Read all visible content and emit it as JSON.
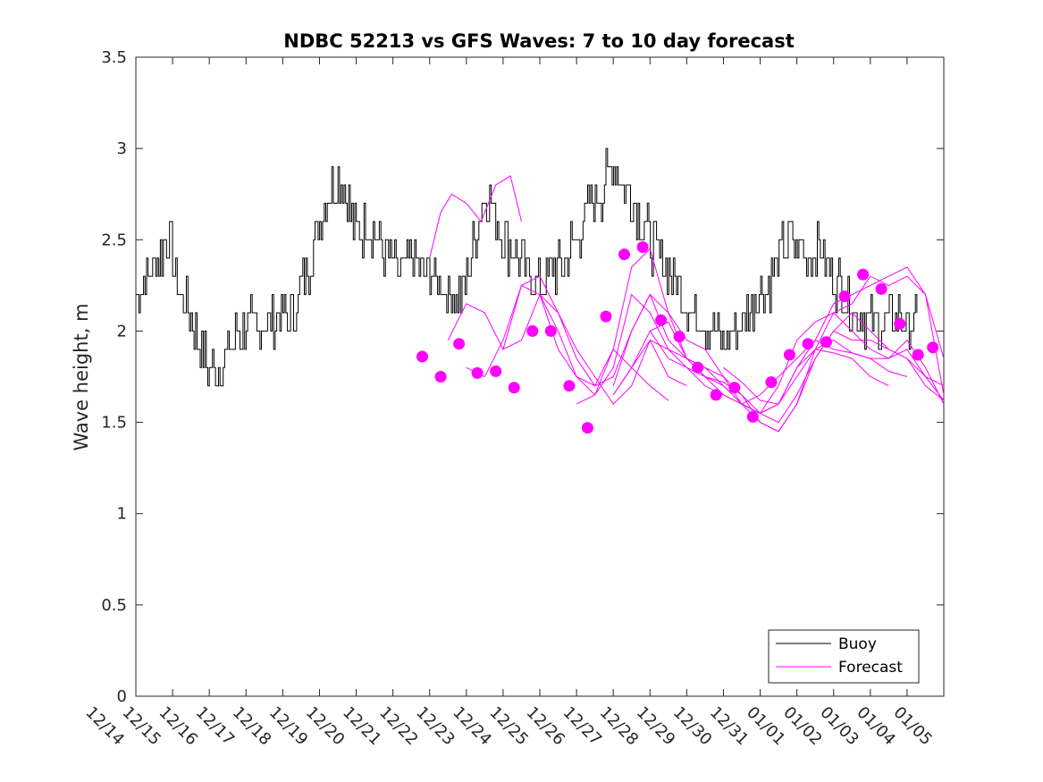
{
  "chart_data": {
    "type": "line",
    "title": "NDBC 52213 vs GFS Waves: 7 to 10 day forecast",
    "xlabel": "",
    "ylabel": "Wave height, m",
    "xlim_days": [
      0,
      22
    ],
    "ylim": [
      0,
      3.5
    ],
    "yticks": [
      0,
      0.5,
      1,
      1.5,
      2,
      2.5,
      3,
      3.5
    ],
    "ytick_labels": [
      "0",
      "0.5",
      "1",
      "1.5",
      "2",
      "2.5",
      "3",
      "3.5"
    ],
    "xtick_labels": [
      "12/14",
      "12/15",
      "12/16",
      "12/17",
      "12/18",
      "12/19",
      "12/20",
      "12/21",
      "12/22",
      "12/23",
      "12/24",
      "12/25",
      "12/26",
      "12/27",
      "12/28",
      "12/29",
      "12/30",
      "12/31",
      "01/01",
      "01/02",
      "01/03",
      "01/04",
      "01/05"
    ],
    "legend": {
      "position": "bottom-right",
      "entries": [
        "Buoy",
        "Forecast"
      ]
    },
    "colors": {
      "buoy": "#000000",
      "forecast": "#ff00ff"
    },
    "series": [
      {
        "name": "Buoy",
        "x": [
          0,
          0.3,
          0.6,
          0.9,
          1.0,
          1.2,
          1.5,
          1.8,
          2.0,
          2.2,
          2.5,
          2.8,
          3.0,
          3.3,
          3.6,
          3.9,
          4.1,
          4.3,
          4.6,
          4.9,
          5.0,
          5.2,
          5.5,
          5.8,
          6.0,
          6.3,
          6.6,
          6.9,
          7.2,
          7.5,
          7.8,
          8.0,
          8.3,
          8.6,
          8.9,
          9.0,
          9.2,
          9.5,
          9.8,
          10.0,
          10.3,
          10.6,
          10.9,
          11.2,
          11.5,
          11.8,
          12.0,
          12.3,
          12.6,
          12.9,
          13.0,
          13.3,
          13.6,
          13.9,
          14.0,
          14.3,
          14.6,
          14.9,
          15.2,
          15.5,
          15.8,
          16.0,
          16.3,
          16.6,
          16.9,
          17.2,
          17.5,
          17.8,
          18.0,
          18.3,
          18.6,
          18.9,
          19.0,
          19.3,
          19.6,
          19.9,
          20.2,
          20.5,
          20.8,
          21.0,
          21.3
        ],
        "y": [
          2.2,
          2.3,
          2.4,
          2.5,
          2.4,
          2.2,
          2.1,
          1.9,
          1.8,
          1.75,
          1.9,
          2.0,
          2.05,
          2.0,
          2.05,
          2.1,
          2.05,
          2.1,
          2.3,
          2.5,
          2.65,
          2.7,
          2.85,
          2.7,
          2.5,
          2.6,
          2.5,
          2.4,
          2.3,
          2.4,
          2.35,
          2.3,
          2.25,
          2.2,
          2.2,
          2.3,
          2.5,
          2.75,
          2.6,
          2.5,
          2.45,
          2.3,
          2.25,
          2.3,
          2.35,
          2.45,
          2.5,
          2.65,
          2.75,
          2.85,
          2.9,
          2.8,
          2.7,
          2.55,
          2.5,
          2.4,
          2.3,
          2.2,
          2.1,
          2.05,
          2.0,
          1.95,
          2.0,
          2.1,
          2.2,
          2.25,
          2.4,
          2.5,
          2.45,
          2.4,
          2.45,
          2.35,
          2.3,
          2.2,
          2.1,
          2.05,
          2.0,
          2.05,
          2.1,
          2.0,
          2.05
        ]
      },
      {
        "name": "Forecast",
        "lines": [
          {
            "x": [
              8.0,
              8.3,
              8.6,
              9.0,
              9.4,
              9.8,
              10.2,
              10.5
            ],
            "y": [
              2.4,
              2.65,
              2.75,
              2.7,
              2.6,
              2.8,
              2.85,
              2.6
            ]
          },
          {
            "x": [
              8.5,
              9.0,
              9.5,
              10.0,
              10.5,
              11.0,
              11.5,
              12.0,
              12.5,
              13.0,
              13.5,
              14.0,
              14.5
            ],
            "y": [
              1.95,
              2.15,
              2.1,
              1.9,
              1.95,
              2.2,
              1.9,
              1.75,
              1.7,
              1.9,
              1.8,
              1.7,
              1.62
            ]
          },
          {
            "x": [
              9.0,
              9.5,
              10.0,
              10.5,
              11.0,
              11.5,
              12.0,
              12.5,
              13.0,
              13.5,
              14.0,
              14.5,
              15.0,
              15.5,
              16.0,
              16.5,
              17.0,
              17.5,
              18.0,
              18.5,
              19.0,
              19.5,
              20.0,
              20.5,
              21.0,
              21.5,
              22.0
            ],
            "y": [
              1.8,
              1.75,
              1.95,
              2.25,
              2.2,
              2.0,
              1.75,
              1.65,
              1.8,
              2.2,
              2.1,
              1.9,
              1.8,
              1.75,
              1.65,
              1.6,
              1.65,
              1.75,
              1.85,
              1.95,
              1.9,
              1.88,
              1.85,
              1.85,
              1.95,
              1.8,
              1.6
            ]
          },
          {
            "x": [
              10.0,
              10.5,
              11.0,
              11.5,
              12.0,
              12.5,
              13.0,
              13.5,
              14.0,
              14.5,
              15.0,
              15.5,
              16.0,
              16.5,
              17.0,
              17.5,
              18.0,
              18.5,
              19.0,
              19.5,
              20.0,
              20.5,
              21.0,
              21.5,
              22.0
            ],
            "y": [
              1.9,
              2.25,
              2.3,
              2.1,
              1.85,
              1.7,
              1.75,
              2.0,
              2.2,
              1.95,
              1.85,
              1.8,
              1.75,
              1.6,
              1.55,
              1.7,
              1.95,
              2.05,
              2.1,
              2.0,
              1.9,
              1.85,
              1.9,
              1.75,
              1.7
            ]
          },
          {
            "x": [
              11.0,
              11.5,
              12.0,
              12.5,
              13.0,
              13.5,
              14.0,
              14.5,
              15.0,
              15.5,
              16.0,
              16.5,
              17.0,
              17.5,
              18.0,
              18.5,
              19.0,
              19.5,
              20.0,
              20.5,
              21.0,
              21.5,
              22.0
            ],
            "y": [
              2.2,
              2.1,
              1.9,
              1.75,
              1.6,
              1.7,
              1.95,
              1.9,
              1.85,
              1.8,
              1.7,
              1.6,
              1.55,
              1.5,
              1.65,
              1.85,
              2.0,
              1.95,
              1.95,
              1.9,
              1.85,
              1.75,
              1.62
            ]
          },
          {
            "x": [
              12.0,
              12.5,
              13.0,
              13.5,
              14.0,
              14.5,
              15.0,
              15.5,
              16.0,
              16.5,
              17.0,
              17.5,
              18.0,
              18.5,
              19.0,
              19.5,
              20.0,
              20.5,
              21.0,
              21.5,
              22.0
            ],
            "y": [
              1.6,
              1.65,
              1.9,
              2.35,
              2.45,
              2.1,
              1.95,
              1.9,
              1.75,
              1.65,
              1.5,
              1.45,
              1.6,
              1.9,
              2.1,
              2.15,
              2.3,
              2.25,
              2.3,
              2.2,
              1.65
            ]
          },
          {
            "x": [
              13.0,
              13.5,
              14.0,
              14.5,
              15.0,
              15.5,
              16.0,
              16.5,
              17.0,
              17.5,
              18.0,
              18.5,
              19.0,
              19.5,
              20.0,
              20.5,
              21.0,
              21.5,
              22.0
            ],
            "y": [
              1.7,
              2.0,
              2.2,
              2.1,
              1.85,
              1.75,
              1.72,
              1.65,
              1.55,
              1.6,
              1.8,
              1.95,
              2.15,
              2.2,
              2.25,
              2.3,
              2.35,
              2.2,
              1.85
            ]
          },
          {
            "x": [
              13.0,
              13.5,
              14.0,
              14.5,
              15.0,
              15.5,
              16.0,
              16.5,
              17.0,
              17.5,
              18.0,
              18.5,
              19.0,
              19.5,
              20.0,
              20.5,
              21.0,
              21.5,
              22.0
            ],
            "y": [
              1.65,
              1.8,
              2.0,
              2.05,
              1.85,
              1.75,
              1.7,
              1.6,
              1.5,
              1.45,
              1.6,
              1.85,
              2.0,
              2.1,
              2.0,
              1.9,
              1.85,
              1.7,
              1.62
            ]
          },
          {
            "x": [
              13.0,
              13.5,
              14.0,
              14.5,
              15.0
            ],
            "y": [
              1.65,
              1.8,
              1.95,
              1.75,
              1.7
            ]
          },
          {
            "x": [
              14.0,
              14.5,
              15.0,
              15.5,
              16.0,
              16.5,
              17.0,
              17.5,
              18.0,
              18.5,
              19.0,
              19.5,
              20.0,
              20.5
            ],
            "y": [
              2.0,
              1.85,
              1.8,
              1.7,
              1.65,
              1.6,
              1.55,
              1.6,
              1.8,
              1.9,
              1.88,
              1.85,
              1.75,
              1.7
            ]
          },
          {
            "x": [
              16.0,
              16.5,
              17.0,
              17.5,
              18.0,
              18.5,
              19.0,
              19.5,
              20.0,
              20.5,
              21.0
            ],
            "y": [
              1.8,
              1.72,
              1.62,
              1.6,
              1.75,
              1.9,
              1.95,
              1.88,
              1.85,
              1.78,
              1.75
            ]
          }
        ],
        "points": {
          "x": [
            7.8,
            8.3,
            8.8,
            9.3,
            9.8,
            10.3,
            10.8,
            11.3,
            11.8,
            12.3,
            12.8,
            13.3,
            13.8,
            14.3,
            14.8,
            15.3,
            15.8,
            16.3,
            16.8,
            17.3,
            17.8,
            18.3,
            18.8,
            19.3,
            19.8,
            20.3,
            20.8,
            21.3,
            21.7
          ],
          "y": [
            1.86,
            1.75,
            1.93,
            1.77,
            1.78,
            1.69,
            2.0,
            2.0,
            1.7,
            1.47,
            2.08,
            2.42,
            2.46,
            2.06,
            1.97,
            1.8,
            1.65,
            1.69,
            1.53,
            1.72,
            1.87,
            1.93,
            1.94,
            2.19,
            2.31,
            2.23,
            2.04,
            1.87,
            1.91
          ]
        }
      }
    ]
  }
}
